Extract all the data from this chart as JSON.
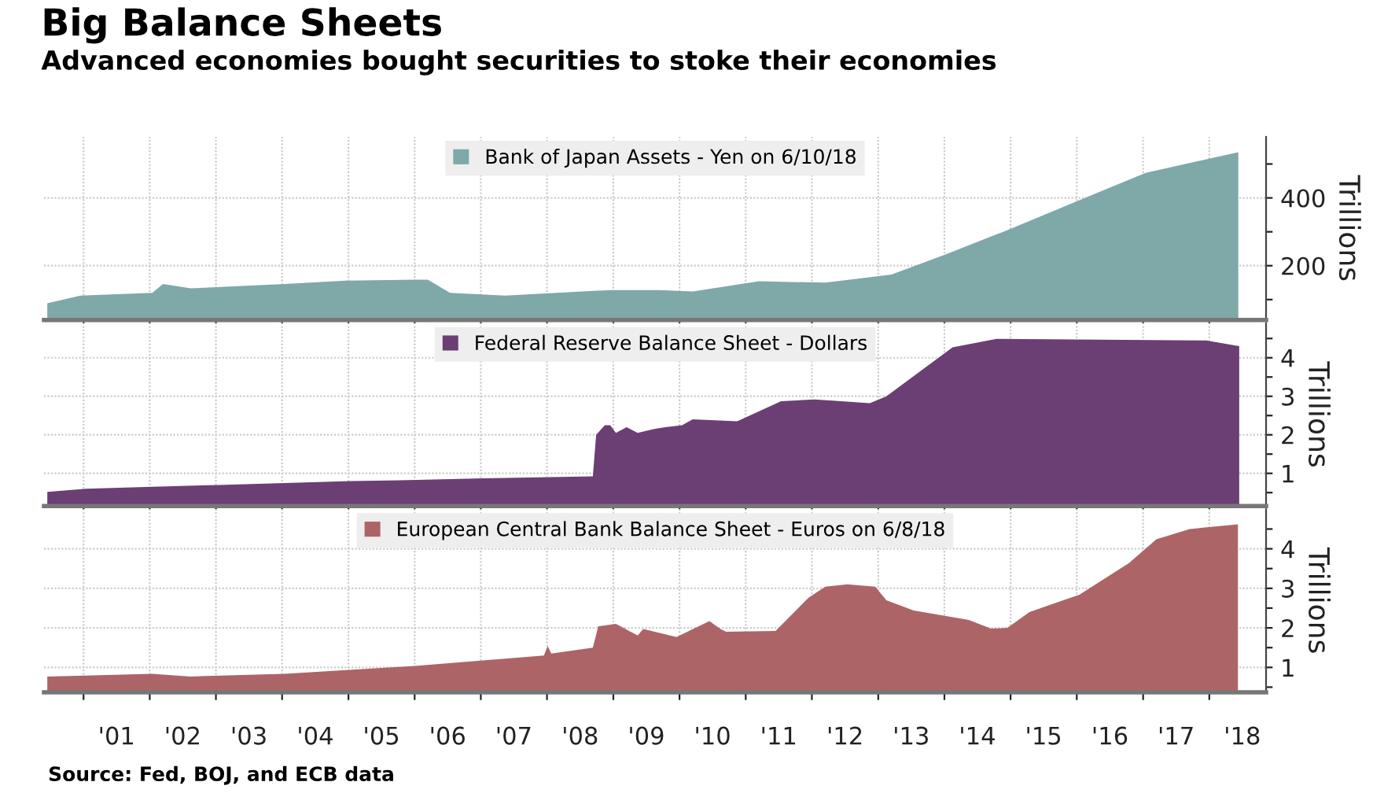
{
  "chart_data": [
    {
      "type": "area",
      "title": "Big Balance Sheets",
      "subtitle": "Advanced economies bought securities to stoke their economies",
      "ylabel": "Trillions",
      "legend": "top",
      "grid": true,
      "tick_labels": "y",
      "xlim": [
        "2000-05-28",
        "2018-11-10"
      ],
      "xticks": [
        {
          "value": "2001-01-01",
          "label": null
        },
        {
          "value": "2002-01-01",
          "label": null
        },
        {
          "value": "2003-01-01",
          "label": null
        },
        {
          "value": "2004-01-01",
          "label": null
        },
        {
          "value": "2005-01-01",
          "label": null
        },
        {
          "value": "2006-01-01",
          "label": null
        },
        {
          "value": "2007-01-01",
          "label": null
        },
        {
          "value": "2008-01-01",
          "label": null
        },
        {
          "value": "2009-01-01",
          "label": null
        },
        {
          "value": "2010-01-01",
          "label": null
        },
        {
          "value": "2011-01-01",
          "label": null
        },
        {
          "value": "2012-01-01",
          "label": null
        },
        {
          "value": "2013-01-01",
          "label": null
        },
        {
          "value": "2014-01-01",
          "label": null
        },
        {
          "value": "2015-01-01",
          "label": null
        },
        {
          "value": "2016-01-01",
          "label": null
        },
        {
          "value": "2017-01-01",
          "label": null
        },
        {
          "value": "2018-01-01",
          "label": null
        }
      ],
      "ylim": [
        40,
        580
      ],
      "yticks": [
        {
          "value": 100,
          "label": null
        },
        200,
        {
          "value": 300,
          "label": null
        },
        400,
        {
          "value": 500,
          "label": null
        }
      ],
      "series": [
        {
          "name": "Bank of Japan Assets - Yen on 6/10/18",
          "color": "#7fa8a8",
          "x": [
            "2000-06",
            "2000-12",
            "2002-01",
            "2002-03",
            "2002-08",
            "2004-01",
            "2004-12",
            "2006-01",
            "2006-03",
            "2006-07",
            "2007-05",
            "2008-12",
            "2009-09",
            "2010-03",
            "2011-03",
            "2012-03",
            "2013-03",
            "2014-01",
            "2014-12",
            "2016-05",
            "2017-01",
            "2018-06-10"
          ],
          "values": [
            89,
            112,
            120,
            146,
            133,
            146,
            156,
            159,
            159,
            120,
            112,
            128,
            128,
            124,
            154,
            150,
            174,
            235,
            305,
            420,
            474,
            535
          ]
        }
      ]
    },
    {
      "type": "area",
      "ylabel": "Trillions",
      "legend": "top",
      "grid": true,
      "tick_labels": "y",
      "xlim": [
        "2000-05-28",
        "2018-11-10"
      ],
      "xticks": [
        {
          "value": "2001-01-01",
          "label": null
        },
        {
          "value": "2002-01-01",
          "label": null
        },
        {
          "value": "2003-01-01",
          "label": null
        },
        {
          "value": "2004-01-01",
          "label": null
        },
        {
          "value": "2005-01-01",
          "label": null
        },
        {
          "value": "2006-01-01",
          "label": null
        },
        {
          "value": "2007-01-01",
          "label": null
        },
        {
          "value": "2008-01-01",
          "label": null
        },
        {
          "value": "2009-01-01",
          "label": null
        },
        {
          "value": "2010-01-01",
          "label": null
        },
        {
          "value": "2011-01-01",
          "label": null
        },
        {
          "value": "2012-01-01",
          "label": null
        },
        {
          "value": "2013-01-01",
          "label": null
        },
        {
          "value": "2014-01-01",
          "label": null
        },
        {
          "value": "2015-01-01",
          "label": null
        },
        {
          "value": "2016-01-01",
          "label": null
        },
        {
          "value": "2017-01-01",
          "label": null
        },
        {
          "value": "2018-01-01",
          "label": null
        }
      ],
      "ylim": [
        0.15,
        4.9
      ],
      "yticks": [
        {
          "value": 0.5,
          "label": null
        },
        1,
        {
          "value": 1.5,
          "label": null
        },
        2,
        {
          "value": 2.5,
          "label": null
        },
        3,
        {
          "value": 3.5,
          "label": null
        },
        4,
        {
          "value": 4.5,
          "label": null
        }
      ],
      "series": [
        {
          "name": "Federal Reserve Balance Sheet - Dollars",
          "color": "#6b3f74",
          "x": [
            "2000-06",
            "2001-01",
            "2002-01",
            "2003-01",
            "2004-01",
            "2005-01",
            "2006-01",
            "2007-01",
            "2008-01",
            "2008-09-10",
            "2008-09-28",
            "2008-11",
            "2008-12",
            "2009-01",
            "2009-03",
            "2009-05",
            "2009-08",
            "2009-10",
            "2010-01",
            "2010-03",
            "2010-11",
            "2011-07",
            "2012-01",
            "2012-11",
            "2013-02",
            "2014-02",
            "2014-10",
            "2017-12",
            "2018-06"
          ],
          "values": [
            0.52,
            0.6,
            0.65,
            0.7,
            0.75,
            0.8,
            0.83,
            0.87,
            0.9,
            0.92,
            2.0,
            2.25,
            2.25,
            2.05,
            2.2,
            2.05,
            2.15,
            2.2,
            2.25,
            2.4,
            2.35,
            2.87,
            2.92,
            2.82,
            3.0,
            4.27,
            4.49,
            4.45,
            4.3
          ]
        }
      ]
    },
    {
      "type": "area",
      "ylabel": "Trillions",
      "legend": "top",
      "grid": true,
      "annotations": [
        "Source: Fed, BOJ, and ECB data"
      ],
      "xlim": [
        "2000-05-28",
        "2018-11-10"
      ],
      "xticks": [
        {
          "value": "2001-01-01",
          "label": null
        },
        {
          "value": "2001-07-02",
          "label": "'01"
        },
        {
          "value": "2002-01-01",
          "label": null
        },
        {
          "value": "2002-07-02",
          "label": "'02"
        },
        {
          "value": "2003-01-01",
          "label": null
        },
        {
          "value": "2003-07-02",
          "label": "'03"
        },
        {
          "value": "2004-01-01",
          "label": null
        },
        {
          "value": "2004-07-02",
          "label": "'04"
        },
        {
          "value": "2005-01-01",
          "label": null
        },
        {
          "value": "2005-07-02",
          "label": "'05"
        },
        {
          "value": "2006-01-01",
          "label": null
        },
        {
          "value": "2006-07-02",
          "label": "'06"
        },
        {
          "value": "2007-01-01",
          "label": null
        },
        {
          "value": "2007-07-02",
          "label": "'07"
        },
        {
          "value": "2008-01-01",
          "label": null
        },
        {
          "value": "2008-07-02",
          "label": "'08"
        },
        {
          "value": "2009-01-01",
          "label": null
        },
        {
          "value": "2009-07-02",
          "label": "'09"
        },
        {
          "value": "2010-01-01",
          "label": null
        },
        {
          "value": "2010-07-02",
          "label": "'10"
        },
        {
          "value": "2011-01-01",
          "label": null
        },
        {
          "value": "2011-07-02",
          "label": "'11"
        },
        {
          "value": "2012-01-01",
          "label": null
        },
        {
          "value": "2012-07-02",
          "label": "'12"
        },
        {
          "value": "2013-01-01",
          "label": null
        },
        {
          "value": "2013-07-02",
          "label": "'13"
        },
        {
          "value": "2014-01-01",
          "label": null
        },
        {
          "value": "2014-07-02",
          "label": "'14"
        },
        {
          "value": "2015-01-01",
          "label": null
        },
        {
          "value": "2015-07-02",
          "label": "'15"
        },
        {
          "value": "2016-01-01",
          "label": null
        },
        {
          "value": "2016-07-02",
          "label": "'16"
        },
        {
          "value": "2017-01-01",
          "label": null
        },
        {
          "value": "2017-07-02",
          "label": "'17"
        },
        {
          "value": "2018-01-01",
          "label": null
        },
        {
          "value": "2018-07-02",
          "label": "'18"
        }
      ],
      "ylim": [
        0.37,
        5.0
      ],
      "yticks": [
        {
          "value": 0.5,
          "label": null
        },
        1,
        {
          "value": 1.5,
          "label": null
        },
        2,
        {
          "value": 2.5,
          "label": null
        },
        3,
        {
          "value": 3.5,
          "label": null
        },
        4,
        {
          "value": 4.5,
          "label": null
        }
      ],
      "series": [
        {
          "name": "European Central Bank Balance Sheet - Euros on 6/8/18",
          "color": "#ad6466",
          "x": [
            "2000-06",
            "2002-01",
            "2002-08",
            "2004-01",
            "2006-01",
            "2007-12",
            "2008-01-05",
            "2008-01-25",
            "2008-09-10",
            "2008-10-10",
            "2009-01",
            "2009-05",
            "2009-06",
            "2009-12",
            "2010-06",
            "2010-08",
            "2010-09",
            "2011-06",
            "2011-12",
            "2012-03",
            "2012-07",
            "2012-12",
            "2013-02",
            "2013-07",
            "2014-05",
            "2014-09",
            "2014-12",
            "2015-04",
            "2016-01",
            "2016-10",
            "2017-03",
            "2017-09",
            "2018-06-08"
          ],
          "values": [
            0.77,
            0.84,
            0.77,
            0.84,
            1.04,
            1.3,
            1.54,
            1.35,
            1.5,
            2.04,
            2.1,
            1.81,
            1.97,
            1.77,
            2.17,
            1.97,
            1.9,
            1.92,
            2.77,
            3.04,
            3.1,
            3.04,
            2.7,
            2.44,
            2.2,
            1.98,
            2.0,
            2.4,
            2.84,
            3.64,
            4.24,
            4.5,
            4.62
          ]
        }
      ]
    }
  ]
}
